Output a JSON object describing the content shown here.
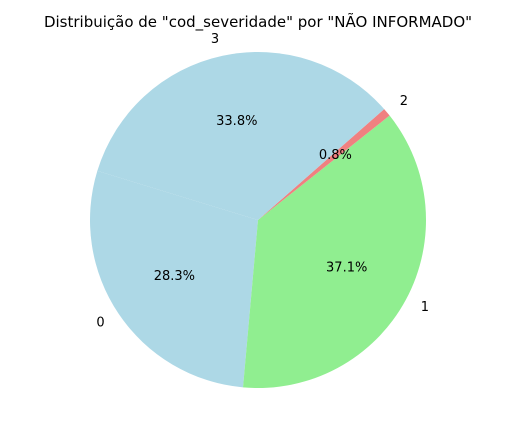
{
  "chart_data": {
    "type": "pie",
    "title": "Distribuição de \"cod_severidade\" por \"NÃO INFORMADO\"",
    "slices": [
      {
        "label": "0",
        "value": 28.3,
        "pct_label": "28.3%",
        "color": "#add8e6"
      },
      {
        "label": "1",
        "value": 37.1,
        "pct_label": "37.1%",
        "color": "#90ee90"
      },
      {
        "label": "2",
        "value": 0.8,
        "pct_label": "0.8%",
        "color": "#f08080"
      },
      {
        "label": "3",
        "value": 33.8,
        "pct_label": "33.8%",
        "color": "#add8e6"
      }
    ]
  }
}
